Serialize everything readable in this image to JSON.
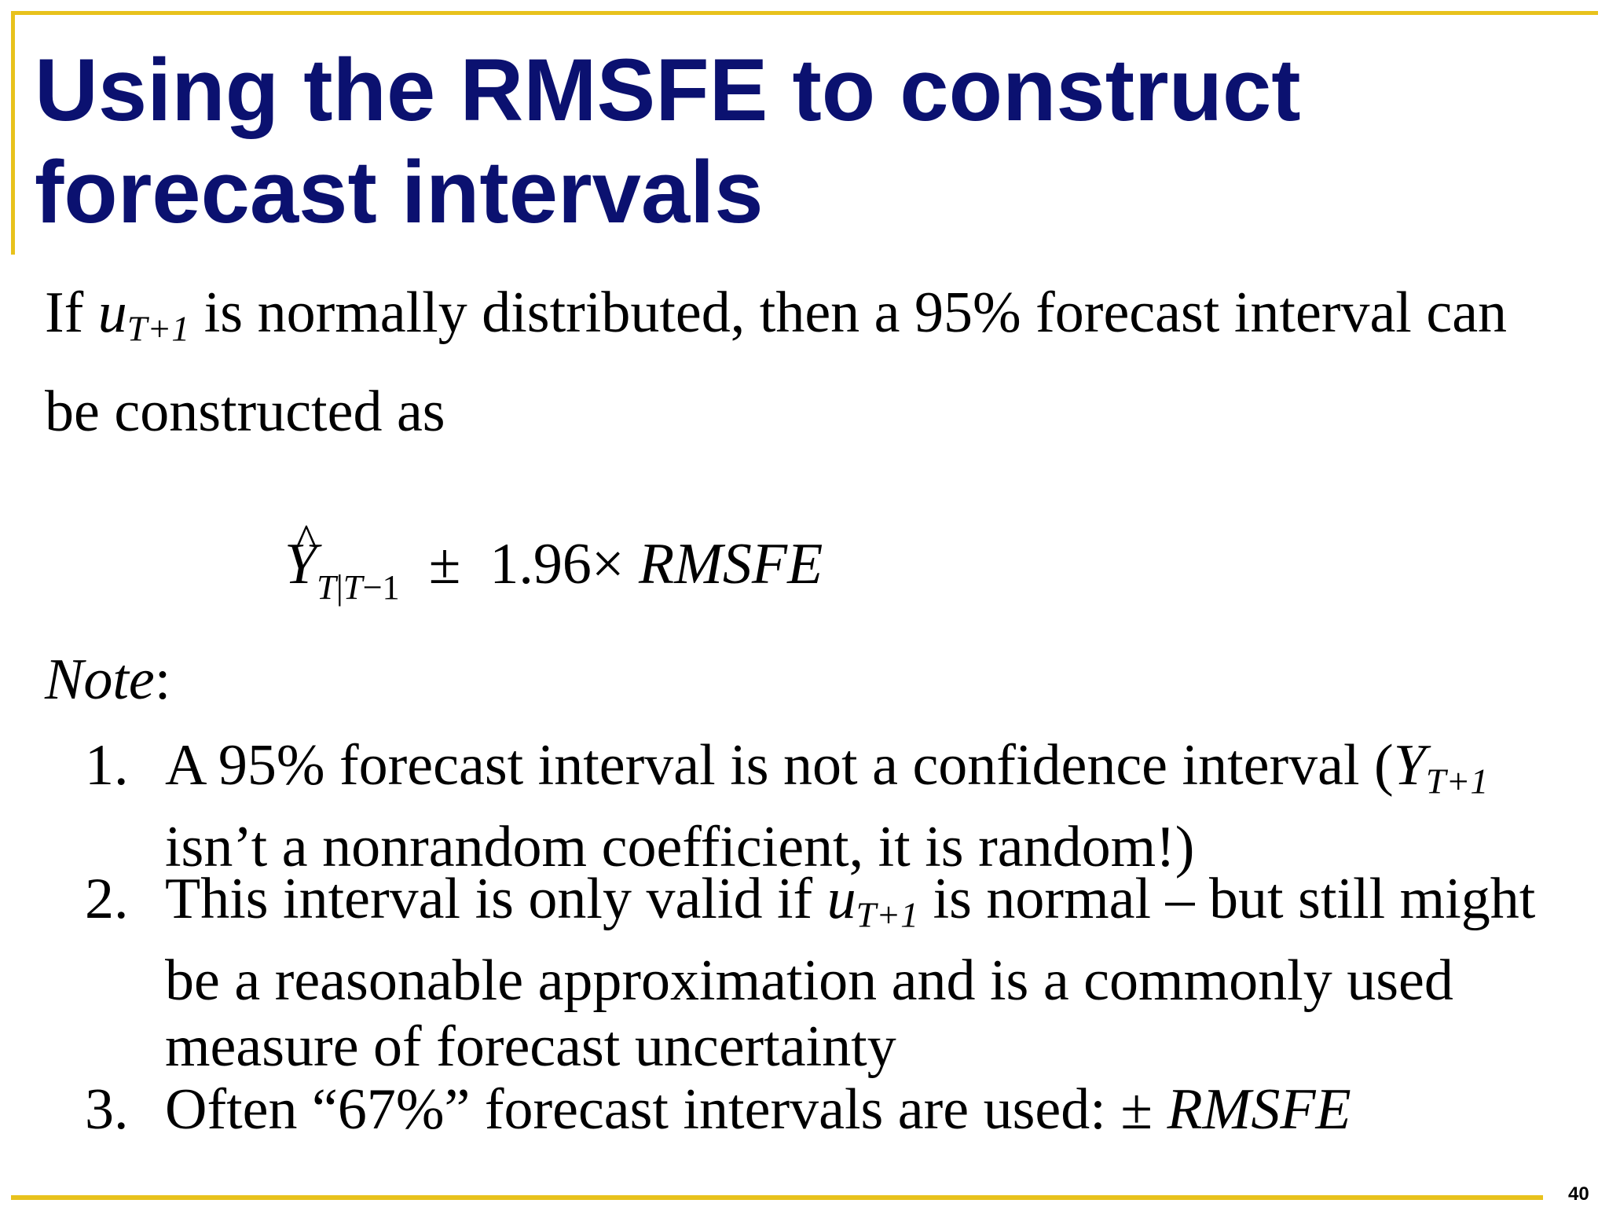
{
  "title": {
    "line1": "Using the RMSFE to construct",
    "line2": "forecast intervals"
  },
  "intro": {
    "word_if": "If",
    "u": "u",
    "u_sub": "T+1",
    "rest_line1": "is normally distributed, then a 95% forecast interval can",
    "line2": "be constructed as"
  },
  "formula": {
    "y": "Y",
    "hat": "^",
    "sub_a": "T",
    "sub_bar": "|",
    "sub_b": "T",
    "sub_c": "−1",
    "pm": "±",
    "coef": "1.96×",
    "rmsfe": "RMSFE"
  },
  "note": {
    "label": "Note",
    "colon": ":"
  },
  "items": [
    {
      "num": "1.",
      "line1_text": "A 95% forecast interval is not a confidence interval (",
      "line1_var": "Y",
      "line1_sub": "T+1",
      "line2": "isn’t a nonrandom coefficient, it is random!)"
    },
    {
      "num": "2.",
      "line1_pre": "This interval is only valid if",
      "line1_var": "u",
      "line1_sub": "T+1",
      "line1_post": "is normal – but still might",
      "line2": "be a reasonable approximation and is a commonly used",
      "line3": "measure of forecast uncertainty"
    },
    {
      "num": "3.",
      "text": "Often “67%” forecast intervals are used:",
      "pm": "±",
      "rmsfe": "RMSFE"
    }
  ],
  "page_number": "40",
  "colors": {
    "title": "#0b1170",
    "rule": "#e8c21c"
  }
}
